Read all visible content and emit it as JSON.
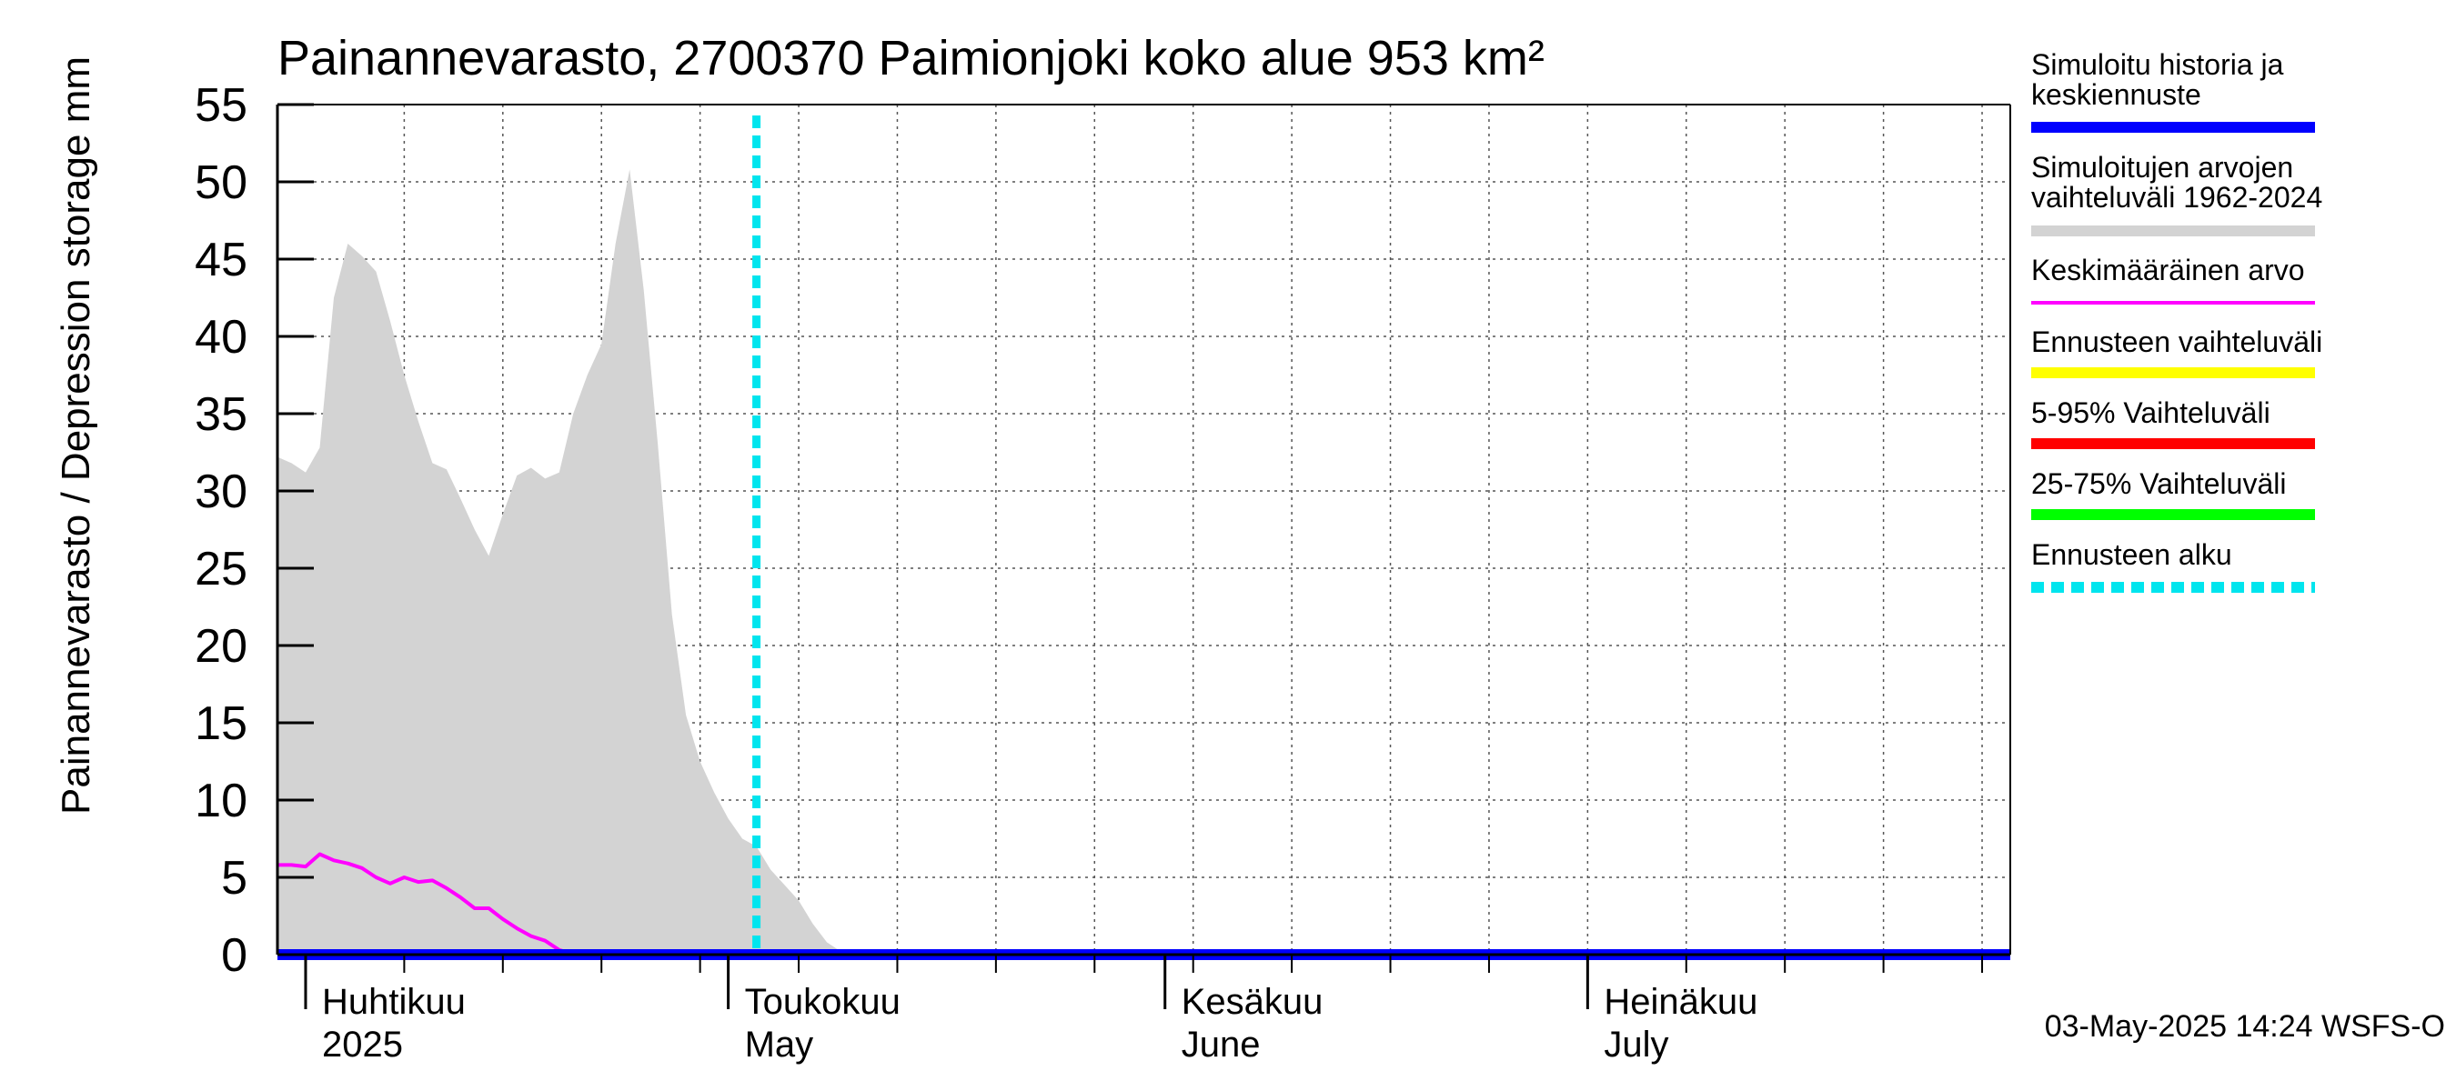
{
  "chart_data": {
    "type": "area",
    "title": "Painannevarasto, 2700370 Paimionjoki koko alue 953 km²",
    "ylabel": "Painannevarasto / Depression storage    mm",
    "ylim": [
      0,
      55
    ],
    "yticks": [
      0,
      5,
      10,
      15,
      20,
      25,
      30,
      35,
      40,
      45,
      50,
      55
    ],
    "xlim": [
      "2025-03-30",
      "2025-07-31"
    ],
    "grid": true,
    "legend_position": "right",
    "month_labels": [
      {
        "date": "2025-04-01",
        "fi": "Huhtikuu",
        "en": "2025"
      },
      {
        "date": "2025-05-01",
        "fi": "Toukokuu",
        "en": "May"
      },
      {
        "date": "2025-06-01",
        "fi": "Kesäkuu",
        "en": "June"
      },
      {
        "date": "2025-07-01",
        "fi": "Heinäkuu",
        "en": "July"
      }
    ],
    "forecast_start": "2025-05-03",
    "series": [
      {
        "name": "Simuloitujen arvojen vaihteluväli 1962-2024",
        "kind": "range",
        "color": "#d3d3d3",
        "x": [
          "2025-03-30",
          "2025-03-31",
          "2025-04-01",
          "2025-04-02",
          "2025-04-03",
          "2025-04-04",
          "2025-04-05",
          "2025-04-06",
          "2025-04-07",
          "2025-04-08",
          "2025-04-09",
          "2025-04-10",
          "2025-04-11",
          "2025-04-12",
          "2025-04-13",
          "2025-04-14",
          "2025-04-15",
          "2025-04-16",
          "2025-04-17",
          "2025-04-18",
          "2025-04-19",
          "2025-04-20",
          "2025-04-21",
          "2025-04-22",
          "2025-04-23",
          "2025-04-24",
          "2025-04-25",
          "2025-04-26",
          "2025-04-27",
          "2025-04-28",
          "2025-04-29",
          "2025-04-30",
          "2025-05-01",
          "2025-05-02",
          "2025-05-03",
          "2025-05-04",
          "2025-05-05",
          "2025-05-06",
          "2025-05-07",
          "2025-05-08",
          "2025-05-09",
          "2025-05-10",
          "2025-05-11",
          "2025-05-12",
          "2025-05-13",
          "2025-05-14",
          "2025-05-15",
          "2025-05-16",
          "2025-07-31"
        ],
        "upper": [
          32.2,
          31.8,
          31.2,
          32.8,
          42.5,
          46.0,
          45.2,
          44.2,
          41.0,
          37.5,
          34.5,
          31.8,
          31.4,
          29.5,
          27.5,
          25.8,
          28.5,
          31.0,
          31.5,
          30.8,
          31.2,
          35.0,
          37.5,
          39.5,
          46.0,
          50.8,
          43.0,
          33.0,
          22.0,
          15.5,
          12.5,
          10.5,
          8.8,
          7.5,
          7.0,
          5.5,
          4.5,
          3.5,
          2.0,
          0.8,
          0.2,
          0.0,
          0.0,
          0.0,
          0.0,
          0.0,
          0.0,
          0.0,
          0.0
        ],
        "lower": [
          0,
          0,
          0,
          0,
          0,
          0,
          0,
          0,
          0,
          0,
          0,
          0,
          0,
          0,
          0,
          0,
          0,
          0,
          0,
          0,
          0,
          0,
          0,
          0,
          0,
          0,
          0,
          0,
          0,
          0,
          0,
          0,
          0,
          0,
          0,
          0,
          0,
          0,
          0,
          0,
          0,
          0,
          0,
          0,
          0,
          0,
          0,
          0,
          0
        ]
      },
      {
        "name": "Keskimääräinen arvo",
        "kind": "line",
        "color": "#ff00ff",
        "x": [
          "2025-03-30",
          "2025-03-31",
          "2025-04-01",
          "2025-04-02",
          "2025-04-03",
          "2025-04-04",
          "2025-04-05",
          "2025-04-06",
          "2025-04-07",
          "2025-04-08",
          "2025-04-09",
          "2025-04-10",
          "2025-04-11",
          "2025-04-12",
          "2025-04-13",
          "2025-04-14",
          "2025-04-15",
          "2025-04-16",
          "2025-04-17",
          "2025-04-18",
          "2025-04-19",
          "2025-04-20",
          "2025-04-21",
          "2025-04-22",
          "2025-04-23",
          "2025-07-31"
        ],
        "values": [
          5.8,
          5.8,
          5.7,
          6.5,
          6.1,
          5.9,
          5.6,
          5.0,
          4.6,
          5.0,
          4.7,
          4.8,
          4.3,
          3.7,
          3.0,
          3.0,
          2.3,
          1.7,
          1.2,
          0.9,
          0.3,
          0.05,
          0.0,
          0.0,
          0.0,
          0.0
        ]
      },
      {
        "name": "Simuloitu historia ja keskiennuste",
        "kind": "line",
        "color": "#0000ff",
        "x": [
          "2025-03-30",
          "2025-07-31"
        ],
        "values": [
          0.0,
          0.0
        ]
      }
    ],
    "legend": [
      {
        "label": "Simuloitu historia ja keskiennuste",
        "color": "#0000ff",
        "style": "solid"
      },
      {
        "label": "Simuloitujen arvojen vaihteluväli 1962-2024",
        "color": "#d3d3d3",
        "style": "solid"
      },
      {
        "label": "Keskimääräinen arvo",
        "color": "#ff00ff",
        "style": "thin"
      },
      {
        "label": "Ennusteen vaihteluväli",
        "color": "#ffff00",
        "style": "solid"
      },
      {
        "label": "5-95% Vaihteluväli",
        "color": "#ff0000",
        "style": "solid"
      },
      {
        "label": "25-75% Vaihteluväli",
        "color": "#00ff00",
        "style": "solid"
      },
      {
        "label": "Ennusteen alku",
        "color": "#00e5ee",
        "style": "dashed"
      }
    ],
    "footer": "03-May-2025 14:24 WSFS-O"
  }
}
